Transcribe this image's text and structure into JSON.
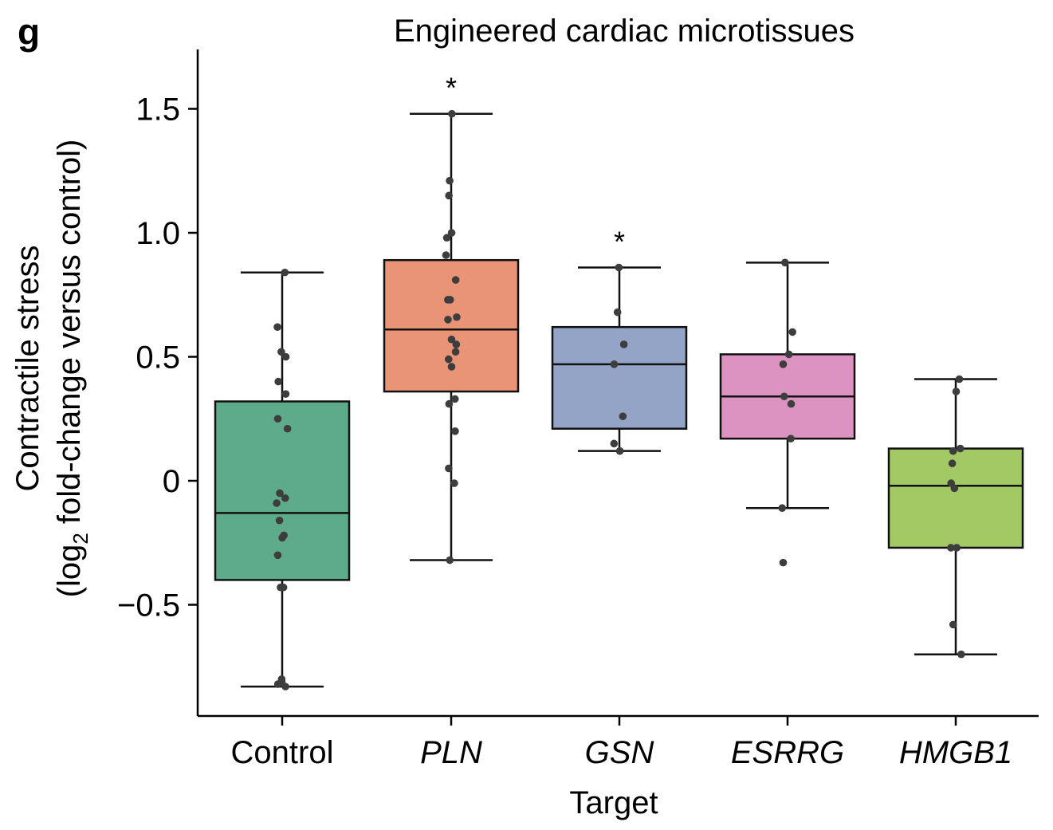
{
  "panel_label": "g",
  "chart_data": {
    "type": "box",
    "title": "Engineered cardiac microtissues",
    "xlabel": "Target",
    "ylabel_line1": "Contractile stress",
    "ylabel_line2_prefix": "(log",
    "ylabel_line2_sub": "2",
    "ylabel_line2_suffix": " fold-change versus control)",
    "ylim": [
      -0.95,
      1.75
    ],
    "yticks": [
      -0.5,
      0,
      0.5,
      1.0,
      1.5
    ],
    "ytick_labels": [
      "−0.5",
      "0",
      "0.5",
      "1.0",
      "1.5"
    ],
    "groups": [
      {
        "label": "Control",
        "italic": false,
        "color": "#5eab8b",
        "q1": -0.4,
        "median": -0.13,
        "q3": 0.32,
        "whisker_low": -0.83,
        "whisker_high": 0.84,
        "significance": "",
        "points": [
          0.84,
          0.62,
          0.52,
          0.5,
          0.4,
          0.35,
          0.25,
          0.21,
          -0.05,
          -0.07,
          -0.09,
          -0.16,
          -0.22,
          -0.23,
          -0.3,
          -0.43,
          -0.43,
          -0.8,
          -0.81,
          -0.82,
          -0.83
        ]
      },
      {
        "label": "PLN",
        "italic": true,
        "color": "#e99477",
        "q1": 0.36,
        "median": 0.61,
        "q3": 0.89,
        "whisker_low": -0.32,
        "whisker_high": 1.48,
        "significance": "*",
        "points": [
          1.48,
          1.21,
          1.15,
          1.0,
          0.98,
          0.91,
          0.81,
          0.73,
          0.73,
          0.66,
          0.65,
          0.57,
          0.55,
          0.52,
          0.49,
          0.46,
          0.33,
          0.31,
          0.2,
          0.05,
          -0.01,
          -0.32
        ]
      },
      {
        "label": "GSN",
        "italic": true,
        "color": "#93a4c6",
        "q1": 0.21,
        "median": 0.47,
        "q3": 0.62,
        "whisker_low": 0.12,
        "whisker_high": 0.86,
        "significance": "*",
        "points": [
          0.86,
          0.68,
          0.55,
          0.47,
          0.26,
          0.15,
          0.12
        ]
      },
      {
        "label": "ESRRG",
        "italic": true,
        "color": "#dc93c1",
        "q1": 0.17,
        "median": 0.34,
        "q3": 0.51,
        "whisker_low": -0.11,
        "whisker_high": 0.88,
        "significance": "",
        "points": [
          0.88,
          0.6,
          0.51,
          0.47,
          0.34,
          0.31,
          0.17,
          -0.11,
          -0.33
        ]
      },
      {
        "label": "HMGB1",
        "italic": true,
        "color": "#a3c965",
        "q1": -0.27,
        "median": -0.02,
        "q3": 0.13,
        "whisker_low": -0.7,
        "whisker_high": 0.41,
        "significance": "",
        "points": [
          0.41,
          0.36,
          0.13,
          0.12,
          0.07,
          -0.01,
          -0.03,
          -0.27,
          -0.27,
          -0.58,
          -0.7
        ]
      }
    ]
  }
}
